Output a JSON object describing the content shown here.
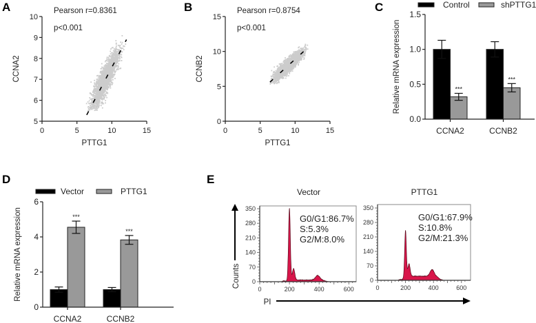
{
  "panel_labels": [
    "A",
    "B",
    "C",
    "D",
    "E"
  ],
  "chart_data": [
    {
      "panel": "A",
      "type": "scatter",
      "xlabel": "PTTG1",
      "ylabel": "CCNA2",
      "xlim": [
        0,
        15
      ],
      "ylim": [
        5,
        10
      ],
      "xticks": [
        0,
        5,
        10,
        15
      ],
      "yticks": [
        5,
        6,
        7,
        8,
        9,
        10
      ],
      "annotations": [
        "Pearson r=0.8361",
        "p<0.001"
      ],
      "regression_line": {
        "x": [
          6.4,
          12.1
        ],
        "y": [
          5.3,
          8.9
        ]
      },
      "point_cloud": {
        "x_range": [
          6.3,
          12.0
        ],
        "y_range": [
          5.5,
          9.7
        ],
        "n": 2500,
        "color": "#cccccc"
      }
    },
    {
      "panel": "B",
      "type": "scatter",
      "xlabel": "PTTG1",
      "ylabel": "CCNB2",
      "xlim": [
        0,
        15
      ],
      "ylim": [
        0,
        15
      ],
      "xticks": [
        0,
        5,
        10,
        15
      ],
      "yticks": [
        0,
        5,
        10,
        15
      ],
      "annotations": [
        "Pearson r=0.8754",
        "p<0.001"
      ],
      "regression_line": {
        "x": [
          6.4,
          12.0
        ],
        "y": [
          5.6,
          10.7
        ]
      },
      "point_cloud": {
        "x_range": [
          6.3,
          12.0
        ],
        "y_range": [
          5.3,
          11.4
        ],
        "n": 2500,
        "color": "#cccccc"
      }
    },
    {
      "panel": "C",
      "type": "bar",
      "categories": [
        "CCNA2",
        "CCNB2"
      ],
      "ylabel": "Relative mRNA expression",
      "ylim": [
        0,
        1.5
      ],
      "yticks": [
        "0.0",
        "0.5",
        "1.0",
        "1.5"
      ],
      "legend": "top",
      "series": [
        {
          "name": "Control",
          "color": "#000000",
          "values": [
            1.0,
            1.0
          ],
          "errors": [
            0.13,
            0.11
          ],
          "significance": [
            "",
            ""
          ]
        },
        {
          "name": "shPTTG1",
          "color": "#999999",
          "values": [
            0.32,
            0.45
          ],
          "errors": [
            0.05,
            0.06
          ],
          "significance": [
            "***",
            "***"
          ]
        }
      ]
    },
    {
      "panel": "D",
      "type": "bar",
      "categories": [
        "CCNA2",
        "CCNB2"
      ],
      "ylabel": "Relative mRNA expression",
      "ylim": [
        0,
        6
      ],
      "yticks": [
        "0",
        "2",
        "4",
        "6"
      ],
      "legend": "top",
      "series": [
        {
          "name": "Vector",
          "color": "#000000",
          "values": [
            1.0,
            1.0
          ],
          "errors": [
            0.15,
            0.12
          ],
          "significance": [
            "",
            ""
          ]
        },
        {
          "name": "PTTG1",
          "color": "#999999",
          "values": [
            4.55,
            3.83
          ],
          "errors": [
            0.35,
            0.25
          ],
          "significance": [
            "***",
            "***"
          ]
        }
      ]
    },
    {
      "panel": "E",
      "type": "area",
      "xlabel": "PI",
      "ylabel": "Counts",
      "xlim": [
        0,
        650
      ],
      "ylim": [
        0,
        360
      ],
      "xticks": [
        0,
        200,
        400,
        600
      ],
      "yticks": [
        0,
        70,
        140,
        210,
        280,
        350
      ],
      "fill_color": "#d8164a",
      "histograms": [
        {
          "title": "Vector",
          "stats": [
            "G0/G1:86.7%",
            "S:5.3%",
            "G2/M:8.0%"
          ],
          "g1_peak": {
            "x": 200,
            "counts": 345
          },
          "shoulder": {
            "x": 228,
            "counts": 55
          },
          "s_plateau": 8,
          "g2_peak": {
            "x": 390,
            "counts": 22
          }
        },
        {
          "title": "PTTG1",
          "stats": [
            "G0/G1:67.9%",
            "S:10.8%",
            "G2/M:21.3%"
          ],
          "g1_peak": {
            "x": 200,
            "counts": 222
          },
          "shoulder": {
            "x": 225,
            "counts": 60
          },
          "s_plateau": 20,
          "g2_peak": {
            "x": 390,
            "counts": 32
          }
        }
      ]
    }
  ]
}
